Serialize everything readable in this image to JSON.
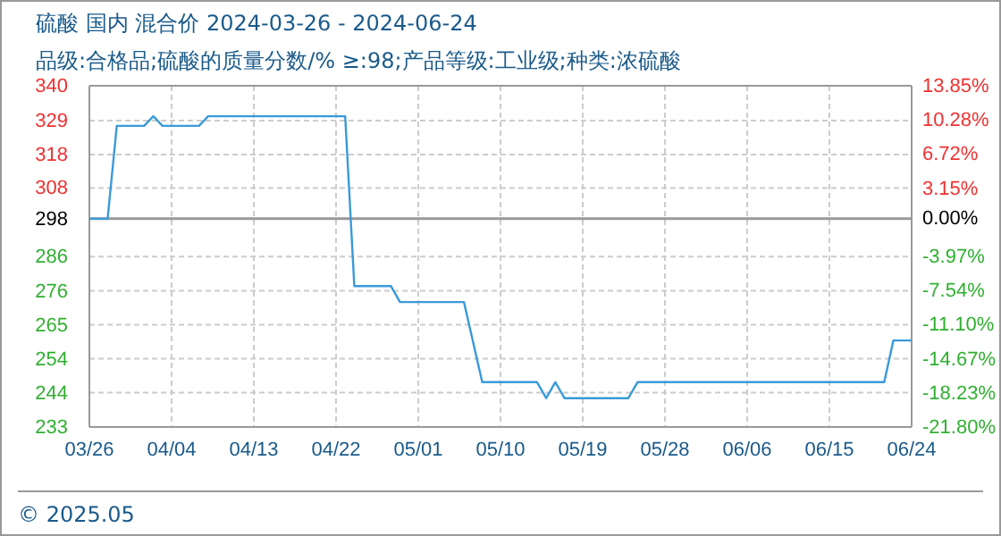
{
  "chart_data": {
    "type": "line",
    "title": "硫酸 国内 混合价 2024-03-26 - 2024-06-24",
    "subtitle": "品级:合格品;硫酸的质量分数/% ≥:98;产品等级:工业级;种类:浓硫酸",
    "x": [
      "2024-03-26",
      "2024-03-28",
      "2024-03-29",
      "2024-04-01",
      "2024-04-02",
      "2024-04-03",
      "2024-04-07",
      "2024-04-08",
      "2024-04-23",
      "2024-04-24",
      "2024-04-28",
      "2024-04-29",
      "2024-05-06",
      "2024-05-08",
      "2024-05-14",
      "2024-05-15",
      "2024-05-16",
      "2024-05-17",
      "2024-05-24",
      "2024-05-25",
      "2024-06-21",
      "2024-06-22",
      "2024-06-24"
    ],
    "series": [
      {
        "color": "#3a9ad9",
        "values": [
          298,
          298,
          327,
          327,
          330,
          327,
          327,
          330,
          330,
          277,
          277,
          272,
          272,
          247,
          247,
          242,
          247,
          242,
          242,
          247,
          247,
          260,
          260
        ]
      }
    ],
    "xlim": [
      "2024-03-26",
      "2024-06-24"
    ],
    "xticks": [
      {
        "value": "2024-03-26",
        "label": "03/26"
      },
      {
        "value": "2024-04-04",
        "label": "04/04"
      },
      {
        "value": "2024-04-13",
        "label": "04/13"
      },
      {
        "value": "2024-04-22",
        "label": "04/22"
      },
      {
        "value": "2024-05-01",
        "label": "05/01"
      },
      {
        "value": "2024-05-10",
        "label": "05/10"
      },
      {
        "value": "2024-05-19",
        "label": "05/19"
      },
      {
        "value": "2024-05-28",
        "label": "05/28"
      },
      {
        "value": "2024-06-06",
        "label": "06/06"
      },
      {
        "value": "2024-06-15",
        "label": "06/15"
      },
      {
        "value": "2024-06-24",
        "label": "06/24"
      }
    ],
    "ylim": [
      233.0,
      339.5
    ],
    "yticks": [
      {
        "value": 339.5,
        "label": "340"
      },
      {
        "value": 328.6,
        "label": "329"
      },
      {
        "value": 318.0,
        "label": "318"
      },
      {
        "value": 307.6,
        "label": "308"
      },
      298,
      {
        "value": 286.2,
        "label": "286"
      },
      {
        "value": 275.5,
        "label": "276"
      },
      {
        "value": 264.9,
        "label": "265"
      },
      {
        "value": 254.3,
        "label": "254"
      },
      {
        "value": 243.7,
        "label": "244"
      },
      {
        "value": 233.0,
        "label": "233"
      }
    ],
    "y2lim": [
      -21.8,
      13.85
    ],
    "y2ticks": [
      {
        "value": 13.85,
        "label": "13.85%"
      },
      {
        "value": 10.28,
        "label": "10.28%"
      },
      {
        "value": 6.72,
        "label": "6.72%"
      },
      {
        "value": 3.15,
        "label": "3.15%"
      },
      {
        "value": 0,
        "label": "0.00%"
      },
      {
        "value": -3.97,
        "label": "-3.97%"
      },
      {
        "value": -7.54,
        "label": "-7.54%"
      },
      {
        "value": -11.1,
        "label": "-11.10%"
      },
      {
        "value": -14.67,
        "label": "-14.67%"
      },
      {
        "value": -18.23,
        "label": "-18.23%"
      },
      {
        "value": -21.8,
        "label": "-21.80%"
      }
    ],
    "ref_lines": [
      {
        "axis": "y",
        "value": 298,
        "color": "#999999"
      }
    ],
    "grid": true,
    "annotations": [
      "© 2025.05"
    ]
  }
}
